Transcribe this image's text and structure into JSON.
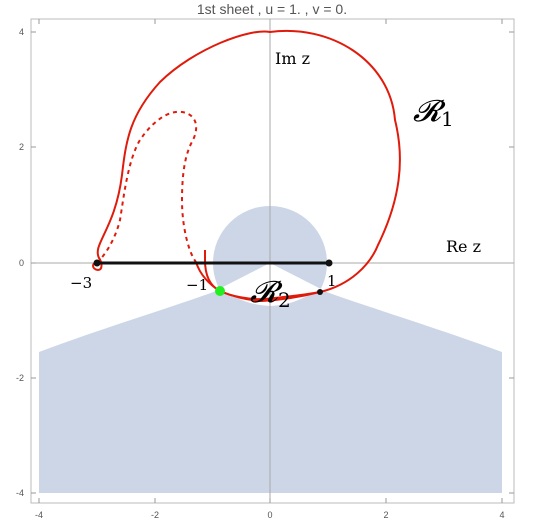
{
  "title": "1st sheet , u = 1. , v = 0.",
  "axes": {
    "x_label": "Re z",
    "y_label": "Im z",
    "x_ticks": [
      "-4",
      "-2",
      "0",
      "2",
      "4"
    ],
    "y_ticks": [
      "4",
      "2",
      "0",
      "-2",
      "-4"
    ]
  },
  "annotations": {
    "point_minus3": "−3",
    "point_minus1": "−1",
    "point_1": "1"
  },
  "regions": {
    "r1": "𝓡",
    "r1_sub": "1",
    "r2": "𝓡",
    "r2_sub": "2"
  },
  "colors": {
    "shaded_region": "#ccd6e6",
    "curve": "#e01b0b",
    "cut": "#111111",
    "marker": "#22ee22",
    "frame": "#bbbbbb"
  }
}
